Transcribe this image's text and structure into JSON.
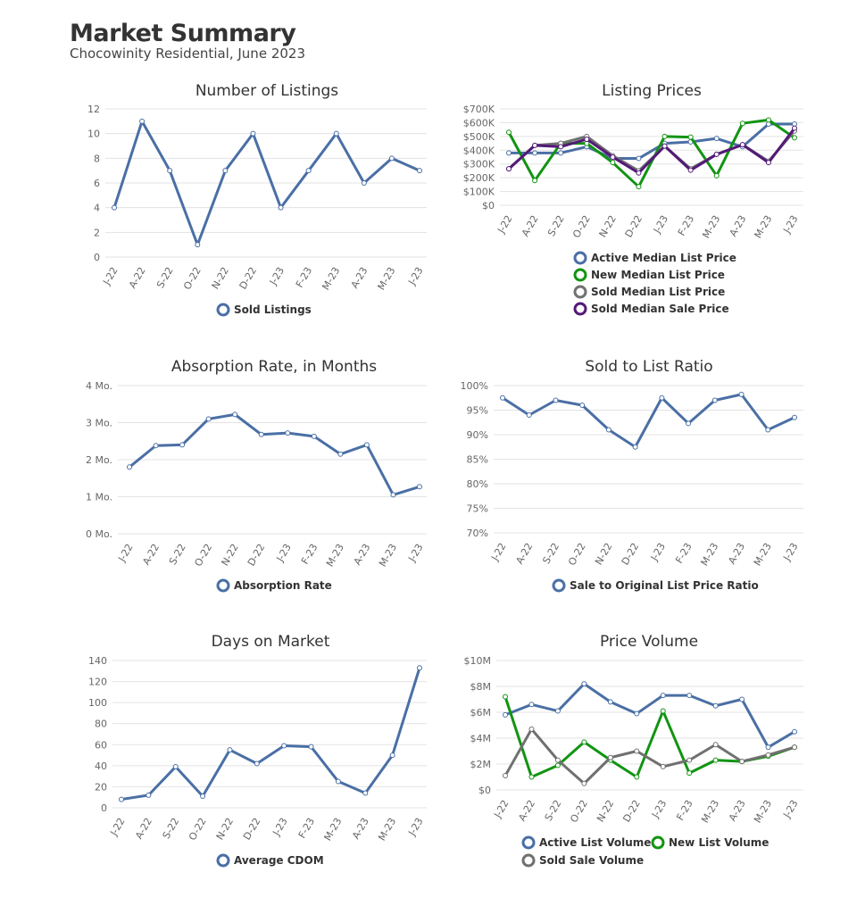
{
  "header": {
    "title": "Market Summary",
    "subtitle": "Chocowinity Residential, June 2023"
  },
  "chart_data": [
    {
      "type": "line",
      "title": "Number of Listings",
      "categories": [
        "J-22",
        "A-22",
        "S-22",
        "O-22",
        "N-22",
        "D-22",
        "J-23",
        "F-23",
        "M-23",
        "A-23",
        "M-23",
        "J-23"
      ],
      "ylim": [
        0,
        12
      ],
      "yticks": [
        0,
        2,
        4,
        6,
        8,
        10,
        12
      ],
      "ytick_labels": [
        "0",
        "2",
        "4",
        "6",
        "8",
        "10",
        "12"
      ],
      "grid": true,
      "legend": "bottom",
      "series": [
        {
          "name": "Sold Listings",
          "color": "#4a6fa5",
          "values": [
            4,
            11,
            7,
            1,
            7,
            10,
            4,
            7,
            10,
            6,
            8,
            7
          ]
        }
      ]
    },
    {
      "type": "line",
      "title": "Listing Prices",
      "categories": [
        "J-22",
        "A-22",
        "S-22",
        "O-22",
        "N-22",
        "D-22",
        "J-23",
        "F-23",
        "M-23",
        "A-23",
        "M-23",
        "J-23"
      ],
      "ylim": [
        0,
        700000
      ],
      "yticks": [
        0,
        100000,
        200000,
        300000,
        400000,
        500000,
        600000,
        700000
      ],
      "ytick_labels": [
        "$0",
        "$100K",
        "$200K",
        "$300K",
        "$400K",
        "$500K",
        "$600K",
        "$700K"
      ],
      "grid": true,
      "legend": "bottom",
      "series": [
        {
          "name": "Active Median List Price",
          "color": "#4a6fa5",
          "values": [
            380000,
            380000,
            380000,
            425000,
            340000,
            340000,
            450000,
            460000,
            485000,
            425000,
            590000,
            590000
          ]
        },
        {
          "name": "New Median List Price",
          "color": "#129412",
          "values": [
            530000,
            180000,
            450000,
            450000,
            310000,
            135000,
            500000,
            495000,
            215000,
            595000,
            620000,
            490000
          ]
        },
        {
          "name": "Sold Median List Price",
          "color": "#707070",
          "values": [
            265000,
            435000,
            450000,
            500000,
            360000,
            250000,
            430000,
            265000,
            370000,
            440000,
            320000,
            540000
          ]
        },
        {
          "name": "Sold Median Sale Price",
          "color": "#531a78",
          "values": [
            265000,
            435000,
            425000,
            480000,
            350000,
            235000,
            430000,
            255000,
            370000,
            440000,
            310000,
            560000
          ]
        }
      ]
    },
    {
      "type": "line",
      "title": "Absorption Rate, in Months",
      "categories": [
        "J-22",
        "A-22",
        "S-22",
        "O-22",
        "N-22",
        "D-22",
        "J-23",
        "F-23",
        "M-23",
        "A-23",
        "M-23",
        "J-23"
      ],
      "ylim": [
        0,
        4
      ],
      "yticks": [
        0,
        1,
        2,
        3,
        4
      ],
      "ytick_labels": [
        "0 Mo.",
        "1 Mo.",
        "2 Mo.",
        "3 Mo.",
        "4 Mo."
      ],
      "grid": true,
      "legend": "bottom",
      "series": [
        {
          "name": "Absorption Rate",
          "color": "#4a6fa5",
          "values": [
            1.8,
            2.38,
            2.4,
            3.1,
            3.22,
            2.68,
            2.72,
            2.63,
            2.15,
            2.4,
            1.05,
            1.27
          ]
        }
      ]
    },
    {
      "type": "line",
      "title": "Sold to List Ratio",
      "categories": [
        "J-22",
        "A-22",
        "S-22",
        "O-22",
        "N-22",
        "D-22",
        "J-23",
        "F-23",
        "M-23",
        "A-23",
        "M-23",
        "J-23"
      ],
      "ylim": [
        70,
        100
      ],
      "yticks": [
        70,
        75,
        80,
        85,
        90,
        95,
        100
      ],
      "ytick_labels": [
        "70%",
        "75%",
        "80%",
        "85%",
        "90%",
        "95%",
        "100%"
      ],
      "grid": true,
      "legend": "bottom",
      "series": [
        {
          "name": "Sale to Original List Price Ratio",
          "color": "#4a6fa5",
          "values": [
            97.5,
            94,
            97,
            96,
            91,
            87.5,
            97.5,
            92.3,
            97,
            98.2,
            91,
            93.5
          ]
        }
      ]
    },
    {
      "type": "line",
      "title": "Days on Market",
      "categories": [
        "J-22",
        "A-22",
        "S-22",
        "O-22",
        "N-22",
        "D-22",
        "J-23",
        "F-23",
        "M-23",
        "A-23",
        "M-23",
        "J-23"
      ],
      "ylim": [
        0,
        140
      ],
      "yticks": [
        0,
        20,
        40,
        60,
        80,
        100,
        120,
        140
      ],
      "ytick_labels": [
        "0",
        "20",
        "40",
        "60",
        "80",
        "100",
        "120",
        "140"
      ],
      "grid": true,
      "legend": "bottom",
      "series": [
        {
          "name": "Average CDOM",
          "color": "#4a6fa5",
          "values": [
            8,
            12,
            39,
            11,
            55,
            42,
            59,
            58,
            25,
            14,
            50,
            133
          ]
        }
      ]
    },
    {
      "type": "line",
      "title": "Price Volume",
      "categories": [
        "J-22",
        "A-22",
        "S-22",
        "O-22",
        "N-22",
        "D-22",
        "J-23",
        "F-23",
        "M-23",
        "A-23",
        "M-23",
        "J-23"
      ],
      "ylim": [
        0,
        10000000
      ],
      "yticks": [
        0,
        2000000,
        4000000,
        6000000,
        8000000,
        10000000
      ],
      "ytick_labels": [
        "$0",
        "$2M",
        "$4M",
        "$6M",
        "$8M",
        "$10M"
      ],
      "grid": true,
      "legend": "bottom",
      "series": [
        {
          "name": "Active List Volume",
          "color": "#4a6fa5",
          "values": [
            5800000,
            6600000,
            6100000,
            8200000,
            6800000,
            5900000,
            7300000,
            7300000,
            6500000,
            7000000,
            3300000,
            4500000
          ]
        },
        {
          "name": "New List Volume",
          "color": "#129412",
          "values": [
            7200000,
            1000000,
            1900000,
            3700000,
            2300000,
            1000000,
            6100000,
            1300000,
            2300000,
            2200000,
            2600000,
            3300000
          ]
        },
        {
          "name": "Sold Sale Volume",
          "color": "#707070",
          "values": [
            1100000,
            4700000,
            2300000,
            500000,
            2500000,
            3000000,
            1800000,
            2300000,
            3500000,
            2200000,
            2700000,
            3300000
          ]
        }
      ]
    }
  ]
}
